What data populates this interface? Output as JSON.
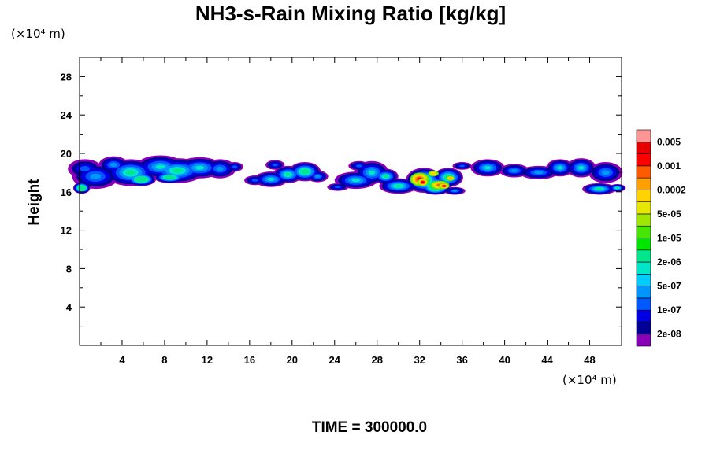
{
  "chart_data": {
    "type": "contour",
    "title": "NH3-s-Rain Mixing Ratio [kg/kg]",
    "ylabel": "Height",
    "y_unit": "(×10⁴ m)",
    "x_unit": "(×10⁴ m)",
    "x_ticks": [
      "4",
      "8",
      "12",
      "16",
      "20",
      "24",
      "28",
      "32",
      "36",
      "40",
      "44",
      "48"
    ],
    "y_ticks": [
      "4",
      "8",
      "12",
      "16",
      "20",
      "24",
      "28"
    ],
    "xlim": [
      0,
      51
    ],
    "ylim": [
      0,
      30
    ],
    "time_label": "TIME = 300000.0",
    "colorbar": {
      "labels": [
        "0.005",
        "0.001",
        "0.0002",
        "5e-05",
        "1e-05",
        "2e-06",
        "5e-07",
        "1e-07",
        "2e-08"
      ],
      "colors": [
        "#8a00b8",
        "#000096",
        "#0000e6",
        "#0058ff",
        "#0096ff",
        "#00cdff",
        "#00e6c8",
        "#00e68c",
        "#00e600",
        "#46e600",
        "#a0e600",
        "#e6e600",
        "#ffd200",
        "#ffa000",
        "#ff5a00",
        "#ff0000",
        "#e60000",
        "#ff9696"
      ]
    },
    "cloud_band": {
      "y_range": [
        15.5,
        19.6
      ],
      "x_range": [
        0,
        51
      ],
      "max_region_x": [
        32,
        35
      ],
      "max_region_y": [
        16.2,
        17.8
      ]
    }
  }
}
